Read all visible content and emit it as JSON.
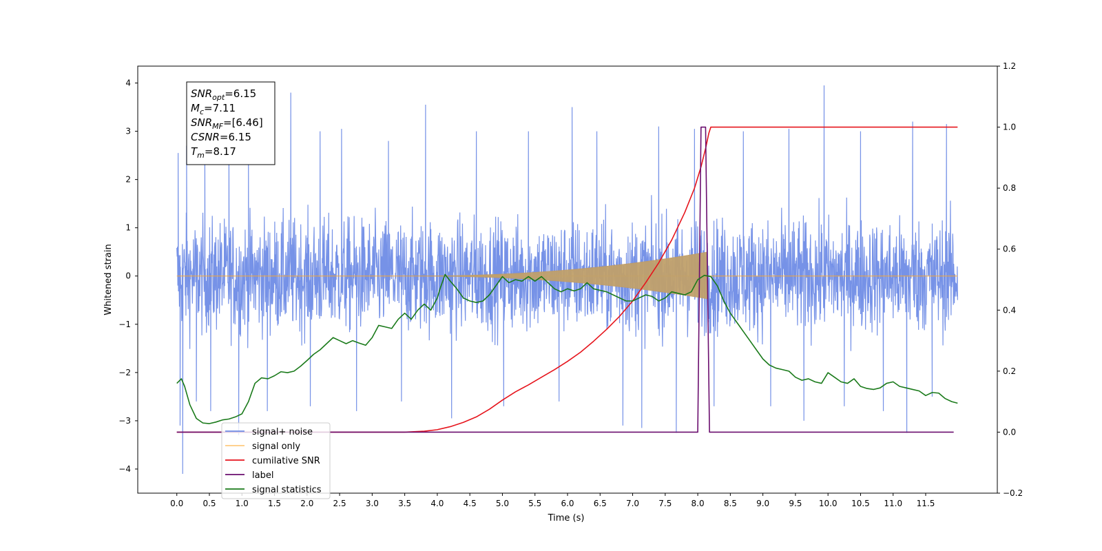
{
  "chart_data": {
    "type": "line",
    "title": "",
    "xlabel": "Time (s)",
    "ylabel": "Whitened strain",
    "xlim": [
      -0.6,
      12.6
    ],
    "ylim": [
      -4.5,
      4.35
    ],
    "y2lim": [
      -0.2,
      1.2
    ],
    "x_ticks": [
      0.0,
      0.5,
      1.0,
      1.5,
      2.0,
      2.5,
      3.0,
      3.5,
      4.0,
      4.5,
      5.0,
      5.5,
      6.0,
      6.5,
      7.0,
      7.5,
      8.0,
      8.5,
      9.0,
      9.5,
      10.0,
      10.5,
      11.0,
      11.5
    ],
    "x_tick_labels": [
      "0.0",
      "0.5",
      "1.0",
      "1.5",
      "2.0",
      "2.5",
      "3.0",
      "3.5",
      "4.0",
      "4.5",
      "5.0",
      "5.5",
      "6.0",
      "6.5",
      "7.0",
      "7.5",
      "8.0",
      "8.5",
      "9.0",
      "9.5",
      "10.0",
      "10.5",
      "11.0",
      "11.5"
    ],
    "y_ticks": [
      -4,
      -3,
      -2,
      -1,
      0,
      1,
      2,
      3,
      4
    ],
    "y_tick_labels": [
      "−4",
      "−3",
      "−2",
      "−1",
      "0",
      "1",
      "2",
      "3",
      "4"
    ],
    "y2_ticks": [
      -0.2,
      0.0,
      0.2,
      0.4,
      0.6,
      0.8,
      1.0,
      1.2
    ],
    "y2_tick_labels": [
      "−0.2",
      "0.0",
      "0.2",
      "0.4",
      "0.6",
      "0.8",
      "1.0",
      "1.2"
    ],
    "grid": false,
    "legend_placement": "lower-left",
    "annotation": {
      "lines": [
        {
          "base": "SNR",
          "sub": "opt",
          "value": "=6.15"
        },
        {
          "base": "M",
          "sub": "c",
          "value": "=7.11"
        },
        {
          "base": "SNR",
          "sub": "MF",
          "value": "=[6.46]"
        },
        {
          "base": "CSNR",
          "sub": "",
          "value": "=6.15"
        },
        {
          "base": "T",
          "sub": "m",
          "value": "=8.17"
        }
      ]
    },
    "series": [
      {
        "name": "signal+ noise",
        "axis": "left",
        "color": "#6f8ce6",
        "style": "noise-band",
        "x_range": [
          0.0,
          11.99
        ],
        "typical_amplitude": 1.5,
        "spikes": [
          {
            "x": 0.02,
            "y": 2.55
          },
          {
            "x": 0.05,
            "y": -3.1
          },
          {
            "x": 0.09,
            "y": -4.1
          },
          {
            "x": 0.15,
            "y": 2.7
          },
          {
            "x": 0.3,
            "y": -2.6
          },
          {
            "x": 0.43,
            "y": 2.8
          },
          {
            "x": 0.52,
            "y": -2.8
          },
          {
            "x": 0.8,
            "y": 2.8
          },
          {
            "x": 0.95,
            "y": -3.3
          },
          {
            "x": 1.1,
            "y": 2.6
          },
          {
            "x": 1.39,
            "y": -2.8
          },
          {
            "x": 1.75,
            "y": 3.8
          },
          {
            "x": 2.05,
            "y": -2.7
          },
          {
            "x": 2.2,
            "y": 3.0
          },
          {
            "x": 2.53,
            "y": 3.05
          },
          {
            "x": 2.76,
            "y": -2.8
          },
          {
            "x": 3.25,
            "y": 2.8
          },
          {
            "x": 3.45,
            "y": -2.6
          },
          {
            "x": 3.82,
            "y": 3.55
          },
          {
            "x": 4.22,
            "y": -2.95
          },
          {
            "x": 4.6,
            "y": 3.0
          },
          {
            "x": 5.02,
            "y": -2.7
          },
          {
            "x": 5.4,
            "y": 3.0
          },
          {
            "x": 5.87,
            "y": -2.6
          },
          {
            "x": 6.07,
            "y": 3.5
          },
          {
            "x": 6.45,
            "y": 3.0
          },
          {
            "x": 6.85,
            "y": -3.1
          },
          {
            "x": 7.14,
            "y": -3.15
          },
          {
            "x": 7.4,
            "y": 3.1
          },
          {
            "x": 7.67,
            "y": -3.25
          },
          {
            "x": 7.95,
            "y": 3.05
          },
          {
            "x": 8.25,
            "y": -2.7
          },
          {
            "x": 8.7,
            "y": 3.0
          },
          {
            "x": 9.12,
            "y": -2.7
          },
          {
            "x": 9.4,
            "y": 3.05
          },
          {
            "x": 9.63,
            "y": -3.0
          },
          {
            "x": 9.94,
            "y": 3.95
          },
          {
            "x": 10.25,
            "y": -2.7
          },
          {
            "x": 10.5,
            "y": 3.0
          },
          {
            "x": 10.85,
            "y": -2.8
          },
          {
            "x": 11.21,
            "y": -3.25
          },
          {
            "x": 11.3,
            "y": 3.2
          },
          {
            "x": 11.6,
            "y": -2.5
          },
          {
            "x": 11.82,
            "y": 3.15
          }
        ]
      },
      {
        "name": "signal only",
        "axis": "left",
        "color": "#ffa726",
        "style": "chirp",
        "start": 3.5,
        "end": 8.15,
        "peak_amplitude": 0.5
      },
      {
        "name": "cumilative SNR",
        "axis": "right",
        "color": "#e6131b",
        "x": [
          0.0,
          3.0,
          3.5,
          3.8,
          4.0,
          4.2,
          4.4,
          4.6,
          4.8,
          5.0,
          5.2,
          5.4,
          5.6,
          5.8,
          6.0,
          6.2,
          6.4,
          6.6,
          6.8,
          7.0,
          7.2,
          7.4,
          7.6,
          7.8,
          7.95,
          8.05,
          8.12,
          8.17,
          8.2,
          11.99
        ],
        "values": [
          0.0,
          0.0,
          0.0,
          0.003,
          0.008,
          0.018,
          0.032,
          0.05,
          0.075,
          0.105,
          0.132,
          0.155,
          0.18,
          0.205,
          0.232,
          0.262,
          0.298,
          0.337,
          0.38,
          0.43,
          0.49,
          0.555,
          0.63,
          0.72,
          0.8,
          0.87,
          0.93,
          0.98,
          1.0,
          1.0
        ]
      },
      {
        "name": "label",
        "axis": "right",
        "color": "#6a0d6e",
        "x": [
          0.0,
          8.0,
          8.05,
          8.12,
          8.18,
          11.93
        ],
        "values": [
          0.0,
          0.0,
          1.0,
          1.0,
          0.0,
          0.0
        ]
      },
      {
        "name": "signal statistics",
        "axis": "right",
        "color": "#1a7a1a",
        "x": [
          0.0,
          0.07,
          0.12,
          0.2,
          0.3,
          0.4,
          0.5,
          0.6,
          0.7,
          0.8,
          0.9,
          1.0,
          1.1,
          1.2,
          1.3,
          1.4,
          1.5,
          1.6,
          1.7,
          1.8,
          1.9,
          2.0,
          2.1,
          2.2,
          2.3,
          2.4,
          2.5,
          2.6,
          2.7,
          2.8,
          2.9,
          3.0,
          3.1,
          3.2,
          3.3,
          3.4,
          3.5,
          3.6,
          3.7,
          3.8,
          3.9,
          4.0,
          4.05,
          4.12,
          4.2,
          4.3,
          4.4,
          4.5,
          4.6,
          4.7,
          4.8,
          4.9,
          5.0,
          5.1,
          5.2,
          5.3,
          5.4,
          5.5,
          5.6,
          5.7,
          5.8,
          5.9,
          6.0,
          6.1,
          6.2,
          6.3,
          6.4,
          6.5,
          6.6,
          6.7,
          6.8,
          6.9,
          7.0,
          7.1,
          7.2,
          7.3,
          7.4,
          7.5,
          7.6,
          7.7,
          7.8,
          7.9,
          8.0,
          8.1,
          8.2,
          8.3,
          8.4,
          8.5,
          8.6,
          8.7,
          8.8,
          8.9,
          9.0,
          9.1,
          9.2,
          9.3,
          9.4,
          9.5,
          9.6,
          9.7,
          9.8,
          9.9,
          10.0,
          10.1,
          10.2,
          10.3,
          10.4,
          10.5,
          10.6,
          10.7,
          10.8,
          10.9,
          11.0,
          11.1,
          11.2,
          11.3,
          11.4,
          11.5,
          11.6,
          11.7,
          11.8,
          11.9,
          11.99
        ],
        "values": [
          0.16,
          0.175,
          0.15,
          0.09,
          0.045,
          0.03,
          0.028,
          0.033,
          0.04,
          0.043,
          0.05,
          0.06,
          0.1,
          0.16,
          0.178,
          0.175,
          0.185,
          0.198,
          0.195,
          0.2,
          0.216,
          0.235,
          0.255,
          0.27,
          0.29,
          0.31,
          0.3,
          0.29,
          0.3,
          0.292,
          0.285,
          0.31,
          0.35,
          0.345,
          0.34,
          0.37,
          0.39,
          0.37,
          0.4,
          0.42,
          0.4,
          0.44,
          0.475,
          0.517,
          0.495,
          0.47,
          0.44,
          0.43,
          0.425,
          0.43,
          0.45,
          0.48,
          0.51,
          0.49,
          0.5,
          0.495,
          0.51,
          0.495,
          0.51,
          0.49,
          0.47,
          0.46,
          0.47,
          0.463,
          0.47,
          0.49,
          0.47,
          0.465,
          0.46,
          0.45,
          0.44,
          0.43,
          0.43,
          0.44,
          0.45,
          0.445,
          0.43,
          0.44,
          0.46,
          0.455,
          0.45,
          0.46,
          0.5,
          0.514,
          0.51,
          0.48,
          0.43,
          0.39,
          0.36,
          0.33,
          0.3,
          0.27,
          0.24,
          0.22,
          0.21,
          0.205,
          0.2,
          0.18,
          0.17,
          0.175,
          0.165,
          0.16,
          0.195,
          0.18,
          0.165,
          0.16,
          0.175,
          0.15,
          0.143,
          0.14,
          0.145,
          0.16,
          0.165,
          0.15,
          0.145,
          0.14,
          0.135,
          0.12,
          0.13,
          0.128,
          0.11,
          0.1,
          0.095
        ]
      }
    ]
  }
}
